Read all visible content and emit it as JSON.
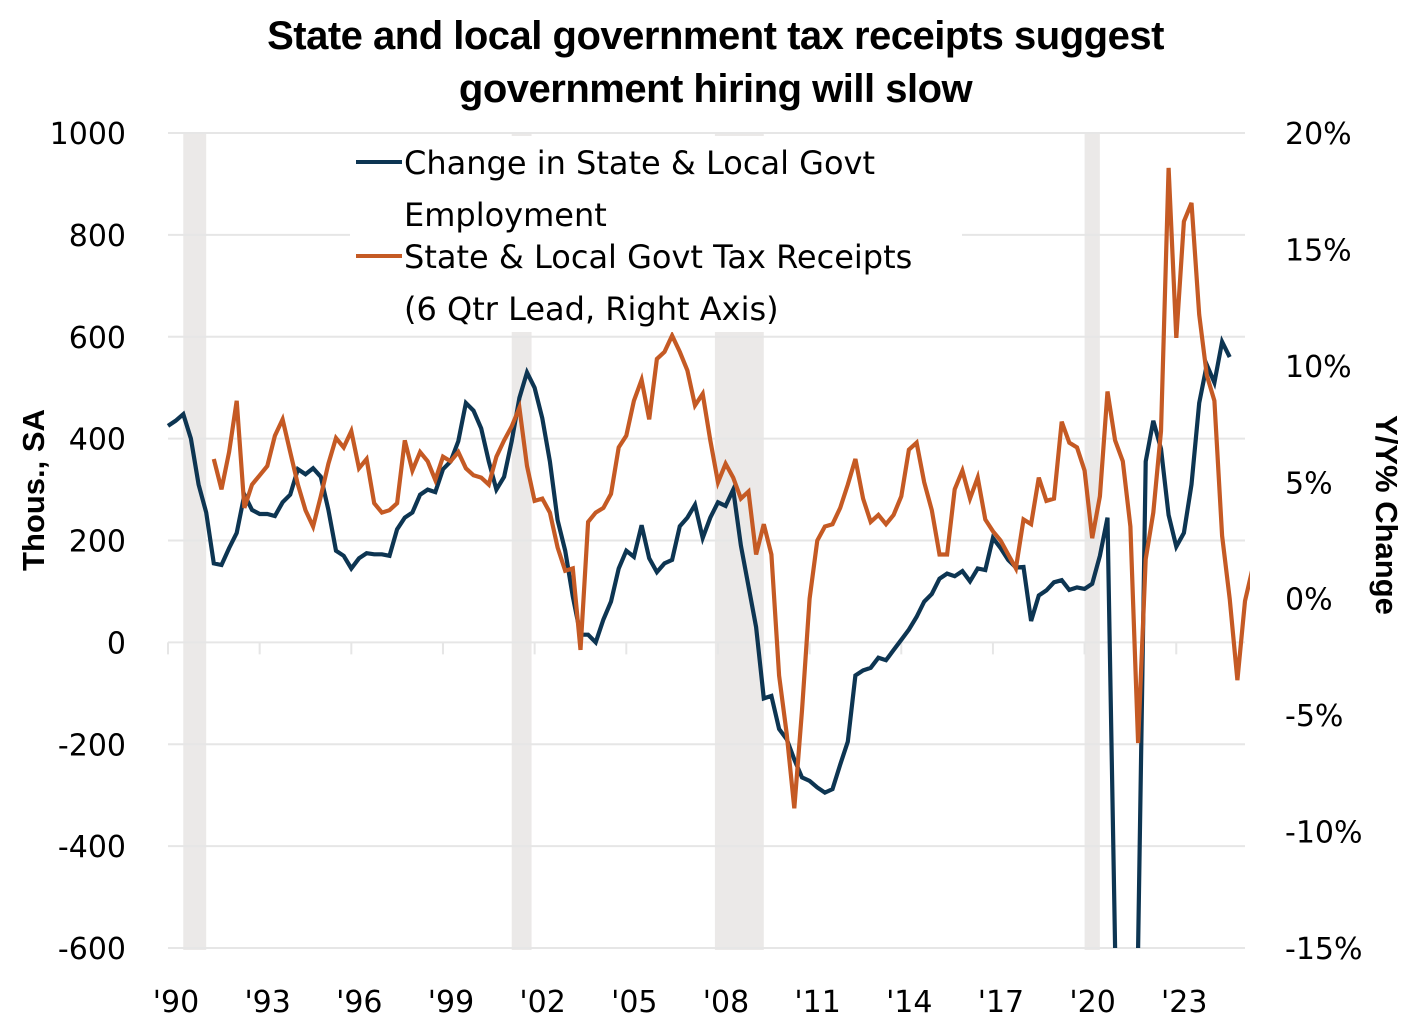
{
  "chart_data": {
    "type": "line",
    "title": "State and local government tax receipts suggest government hiring will slow",
    "title_lines": [
      "State and local government tax receipts suggest",
      "government hiring will slow"
    ],
    "xlabel": "",
    "ylabel_left": "Thous., SA",
    "ylabel_right": "Y/Y% Change",
    "xlim": [
      1990.0,
      2025.25
    ],
    "ylim_left": [
      -600,
      1000
    ],
    "ylim_right": [
      -15,
      20
    ],
    "yticks_left": [
      1000,
      800,
      600,
      400,
      200,
      0,
      -200,
      -400,
      -600
    ],
    "yticks_left_labels": [
      "1000",
      "800",
      "600",
      "400",
      "200",
      "0",
      "-200",
      "-400",
      "-600"
    ],
    "yticks_right": [
      20,
      15,
      10,
      5,
      0,
      -5,
      -10,
      -15
    ],
    "yticks_right_labels": [
      "20%",
      "15%",
      "10%",
      "5%",
      "0%",
      "-5%",
      "-10%",
      "-15%"
    ],
    "xticks": [
      1990,
      1993,
      1996,
      1999,
      2002,
      2005,
      2008,
      2011,
      2014,
      2017,
      2020,
      2023
    ],
    "xtick_labels": [
      "'90",
      "'93",
      "'96",
      "'99",
      "'02",
      "'05",
      "'08",
      "'11",
      "'14",
      "'17",
      "'20",
      "'23"
    ],
    "grid": true,
    "legend_position": "top-center",
    "recessions": [
      [
        1990.5,
        1991.25
      ],
      [
        2001.25,
        2001.9
      ],
      [
        2007.9,
        2009.5
      ],
      [
        2020.0,
        2020.5
      ]
    ],
    "series": [
      {
        "name": "Change in State & Local Govt Employment",
        "legend_lines": [
          "Change in State & Local Govt",
          "Employment"
        ],
        "axis": "left",
        "color": "#0d3552",
        "x_start": 1990.0,
        "x_step": 0.25,
        "values": [
          425,
          435,
          448,
          400,
          310,
          255,
          155,
          152,
          185,
          215,
          290,
          260,
          252,
          252,
          248,
          275,
          290,
          340,
          330,
          342,
          325,
          260,
          180,
          170,
          145,
          165,
          175,
          173,
          173,
          170,
          222,
          245,
          255,
          290,
          300,
          295,
          340,
          355,
          395,
          470,
          455,
          420,
          355,
          300,
          325,
          395,
          480,
          530,
          500,
          440,
          355,
          240,
          180,
          90,
          15,
          15,
          0,
          45,
          80,
          145,
          180,
          168,
          230,
          165,
          138,
          155,
          162,
          228,
          245,
          270,
          205,
          245,
          275,
          268,
          300,
          190,
          110,
          30,
          -110,
          -105,
          -170,
          -190,
          -230,
          -265,
          -272,
          -285,
          -295,
          -288,
          -240,
          -195,
          -65,
          -55,
          -50,
          -30,
          -35,
          -15,
          5,
          25,
          50,
          80,
          95,
          125,
          135,
          130,
          140,
          120,
          145,
          142,
          205,
          185,
          162,
          147,
          148,
          42,
          92,
          102,
          118,
          122,
          103,
          108,
          105,
          115,
          170,
          245,
          -600,
          null,
          null,
          -600,
          355,
          435,
          380,
          250,
          188,
          215,
          310,
          470,
          545,
          510,
          590,
          560
        ]
      },
      {
        "name": "State & Local Govt Tax Receipts (6 Qtr Lead, Right Axis)",
        "legend_lines": [
          "State & Local Govt Tax Receipts",
          "(6 Qtr Lead, Right Axis)"
        ],
        "axis": "right",
        "color": "#c55a24",
        "x_start": 1991.5,
        "x_step": 0.25,
        "values": [
          6.0,
          4.7,
          6.3,
          8.5,
          3.9,
          4.9,
          5.3,
          5.7,
          7.0,
          7.7,
          6.3,
          4.9,
          3.8,
          3.1,
          4.4,
          5.8,
          6.9,
          6.5,
          7.2,
          5.6,
          6.0,
          4.1,
          3.7,
          3.8,
          4.1,
          6.8,
          5.5,
          6.3,
          5.9,
          5.1,
          6.1,
          5.9,
          6.3,
          5.6,
          5.3,
          5.2,
          4.9,
          6.1,
          6.8,
          7.4,
          8.2,
          5.7,
          4.2,
          4.3,
          3.7,
          2.2,
          1.2,
          1.3,
          -2.2,
          3.3,
          3.7,
          3.9,
          4.5,
          6.5,
          7.0,
          8.5,
          9.4,
          7.7,
          10.3,
          10.6,
          11.3,
          10.6,
          9.8,
          8.3,
          8.8,
          6.8,
          5.0,
          5.8,
          5.2,
          4.3,
          4.6,
          1.9,
          3.2,
          1.9,
          -3.3,
          -5.8,
          -9.0,
          -4.8,
          0.0,
          2.5,
          3.1,
          3.2,
          3.9,
          4.9,
          6.0,
          4.3,
          3.3,
          3.6,
          3.2,
          3.6,
          4.4,
          6.4,
          6.7,
          5.0,
          3.8,
          1.9,
          1.9,
          4.7,
          5.5,
          4.3,
          5.2,
          3.4,
          2.9,
          2.5,
          1.9,
          1.3,
          3.4,
          3.2,
          5.2,
          4.2,
          4.3,
          7.6,
          6.7,
          6.5,
          5.5,
          2.6,
          4.4,
          8.9,
          6.8,
          5.9,
          3.1,
          -6.2,
          1.7,
          3.7,
          7.2,
          18.5,
          11.2,
          16.2,
          17.0,
          12.2,
          9.6,
          8.5,
          2.7,
          0.0,
          -3.5,
          -0.1,
          1.3
        ]
      }
    ]
  }
}
